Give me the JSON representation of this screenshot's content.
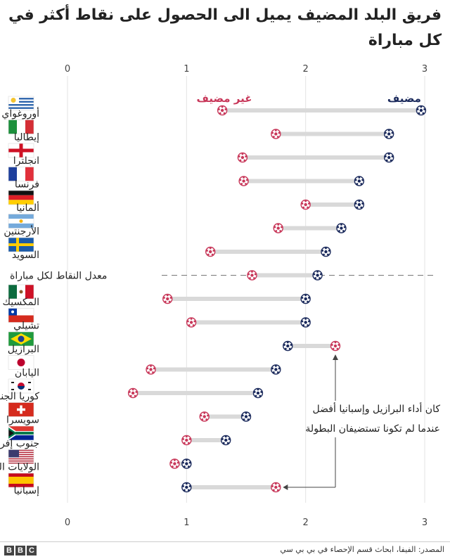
{
  "title": "فريق البلد المضيف يميل الى الحصول على نقاط أكثر في كل مباراة",
  "source": "المصدر: الفيفا، ابحاث قسم الإحصاء في بي بي سي",
  "logo_letters": [
    "B",
    "B",
    "C"
  ],
  "colors": {
    "host": "#1b2a5c",
    "away": "#c8385a",
    "connector": "#d9d9d9",
    "axis": "#888888"
  },
  "chart_data": {
    "type": "dumbbell",
    "xlim": [
      0,
      3
    ],
    "ticks": [
      "0",
      "1",
      "2",
      "3"
    ],
    "grid": true,
    "legend": {
      "host": "مضيف",
      "away": "غير مضيف"
    },
    "average_label": "معدل النقاط لكل مباراة",
    "annotation": [
      "كان أداء البرازيل وإسبانيا أفضل",
      "عندما لم تكونا تستضيفان البطولة"
    ],
    "rows": [
      {
        "country": "أوروغواي",
        "flag": "uruguay",
        "host": 2.97,
        "away": 1.3
      },
      {
        "country": "إيطاليا",
        "flag": "italy",
        "host": 2.7,
        "away": 1.75
      },
      {
        "country": "انجلترا",
        "flag": "england",
        "host": 2.7,
        "away": 1.47
      },
      {
        "country": "فرنسا",
        "flag": "france",
        "host": 2.45,
        "away": 1.48
      },
      {
        "country": "ألمانيا",
        "flag": "germany",
        "host": 2.45,
        "away": 2.0
      },
      {
        "country": "الأرجنتين",
        "flag": "argentina",
        "host": 2.3,
        "away": 1.77
      },
      {
        "country": "السويد",
        "flag": "sweden",
        "host": 2.17,
        "away": 1.2
      },
      {
        "country": "معدل النقاط لكل مباراة",
        "flag": "",
        "host": 2.1,
        "away": 1.55,
        "average": true
      },
      {
        "country": "المكسيك",
        "flag": "mexico",
        "host": 2.0,
        "away": 0.84
      },
      {
        "country": "تشيلي",
        "flag": "chile",
        "host": 2.0,
        "away": 1.04
      },
      {
        "country": "البرازيل",
        "flag": "brazil",
        "host": 1.85,
        "away": 2.25
      },
      {
        "country": "اليابان",
        "flag": "japan",
        "host": 1.75,
        "away": 0.7
      },
      {
        "country": "كوريا الجنوبية",
        "flag": "korea",
        "host": 1.6,
        "away": 0.55
      },
      {
        "country": "سويسرا",
        "flag": "switzerland",
        "host": 1.5,
        "away": 1.15
      },
      {
        "country": "جنوب إفريقيا",
        "flag": "south_africa",
        "host": 1.33,
        "away": 1.0
      },
      {
        "country": "الولايات المتحدة",
        "flag": "usa",
        "host": 1.0,
        "away": 0.9
      },
      {
        "country": "إسبانيا",
        "flag": "spain",
        "host": 1.0,
        "away": 1.75
      }
    ]
  }
}
